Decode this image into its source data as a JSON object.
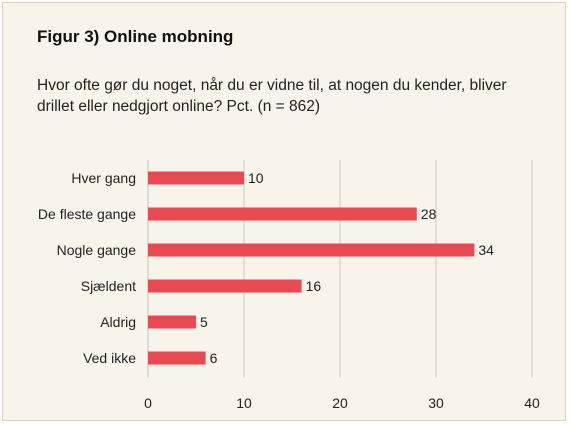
{
  "figure": {
    "title": "Figur 3) Online mobning",
    "subtitle": "Hvor ofte gør du noget, når du er vidne til, at nogen du kender, bliver drillet eller nedgjort online? Pct. (n = 862)"
  },
  "colors": {
    "bar": "#e94a52",
    "grid": "#cfc9bb",
    "background": "#f7f4ec",
    "text": "#222222"
  },
  "chart_data": {
    "type": "bar",
    "orientation": "horizontal",
    "categories": [
      "Hver gang",
      "De fleste gange",
      "Nogle gange",
      "Sjældent",
      "Aldrig",
      "Ved ikke"
    ],
    "values": [
      10,
      28,
      34,
      16,
      5,
      6
    ],
    "xlim": [
      0,
      40
    ],
    "xticks": [
      0,
      10,
      20,
      30,
      40
    ],
    "grid": true,
    "data_labels": true
  }
}
